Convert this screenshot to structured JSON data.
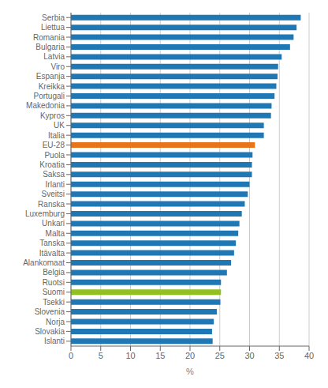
{
  "chart_data": {
    "type": "bar",
    "orientation": "horizontal",
    "categories": [
      "Serbia",
      "Liettua",
      "Romania",
      "Bulgaria",
      "Latvia",
      "Viro",
      "Espanja",
      "Kreikka",
      "Portugali",
      "Makedonia",
      "Kypros",
      "UK",
      "Italia",
      "EU-28",
      "Puola",
      "Kroatia",
      "Saksa",
      "Irlanti",
      "Sveitsi",
      "Ranska",
      "Luxemburg",
      "Unkari",
      "Malta",
      "Tanska",
      "Itävalta",
      "Alankomaat",
      "Belgia",
      "Ruotsi",
      "Suomi",
      "Tsekki",
      "Slovenia",
      "Norja",
      "Slovakia",
      "Islanti"
    ],
    "values": [
      38.6,
      37.9,
      37.4,
      36.8,
      35.4,
      34.8,
      34.7,
      34.5,
      34.2,
      33.7,
      33.6,
      32.4,
      32.4,
      30.9,
      30.5,
      30.4,
      30.4,
      30.0,
      29.7,
      29.2,
      28.7,
      28.3,
      28.1,
      27.7,
      27.4,
      26.9,
      26.2,
      25.2,
      25.2,
      25.1,
      24.5,
      24.0,
      23.7,
      23.8
    ],
    "colors": [
      "#1f78b4",
      "#1f78b4",
      "#1f78b4",
      "#1f78b4",
      "#1f78b4",
      "#1f78b4",
      "#1f78b4",
      "#1f78b4",
      "#1f78b4",
      "#1f78b4",
      "#1f78b4",
      "#1f78b4",
      "#1f78b4",
      "#e8751a",
      "#1f78b4",
      "#1f78b4",
      "#1f78b4",
      "#1f78b4",
      "#1f78b4",
      "#1f78b4",
      "#1f78b4",
      "#1f78b4",
      "#1f78b4",
      "#1f78b4",
      "#1f78b4",
      "#1f78b4",
      "#1f78b4",
      "#1f78b4",
      "#92c021",
      "#1f78b4",
      "#1f78b4",
      "#1f78b4",
      "#1f78b4",
      "#1f78b4"
    ],
    "xlabel": "%",
    "xlim": [
      0,
      40
    ],
    "xticks": [
      0,
      5,
      10,
      15,
      20,
      25,
      30,
      35,
      40
    ],
    "grid": true
  }
}
